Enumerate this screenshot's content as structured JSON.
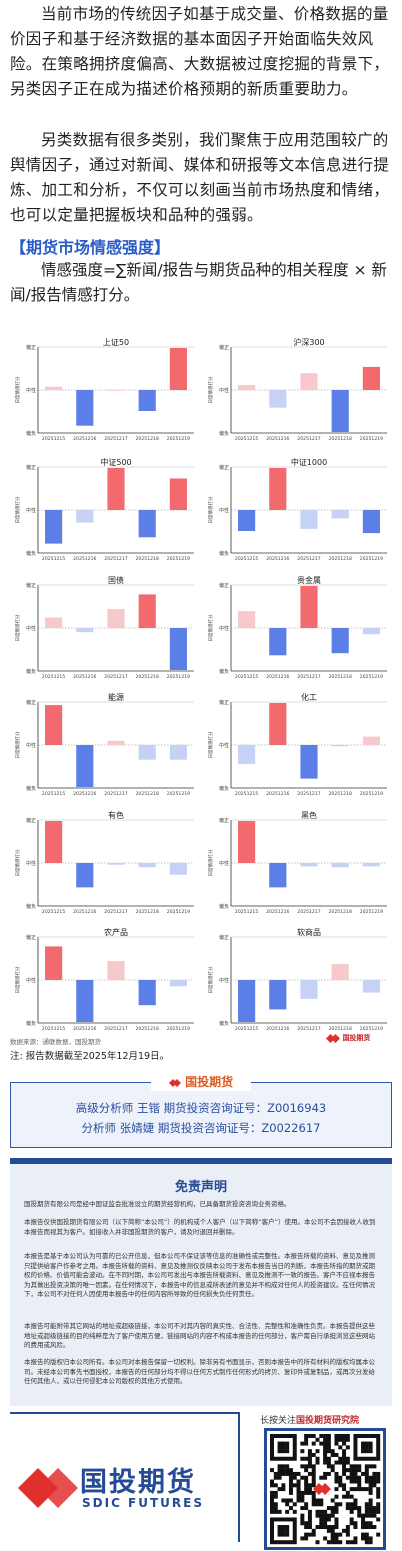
{
  "intro": {
    "p1": "当前市场的传统因子如基于成交量、价格数据的量价因子和基于经济数据的基本面因子开始面临失效风险。在策略拥挤度偏高、大数据被过度挖掘的背景下，另类因子正在成为描述价格预期的新质重要助力。",
    "p2": "另类数据有很多类别，我们聚焦于应用范围较广的舆情因子，通过对新闻、媒体和研报等文本信息进行提炼、加工和分析，不仅可以刻画当前市场热度和情绪，也可以定量把握板块和品种的强弱。",
    "section_title": "【期货市场情感强度】",
    "formula": "情感强度=∑新闻/报告与期货品种的相关程度 × 新闻/报告情感打分。"
  },
  "colors": {
    "pos_strong": "#f26a6e",
    "pos_weak": "#f7c9cd",
    "neg_strong": "#5b7fe6",
    "neg_weak": "#c6d2f5",
    "title_blue": "#2a5cc9",
    "brand_blue": "#254a96",
    "brand_red": "#e0302e"
  },
  "chart_common": {
    "y_top": "偏正",
    "y_mid": "中性",
    "y_bottom": "偏负",
    "y_title": "日度情感打分",
    "dates": [
      "20251215",
      "20251216",
      "20251217",
      "20251218",
      "20251219"
    ]
  },
  "chart_data": [
    {
      "type": "bar",
      "title": "上证50",
      "categories": [
        "20251215",
        "20251216",
        "20251217",
        "20251218",
        "20251219"
      ],
      "values": [
        0.08,
        -0.85,
        0.0,
        -0.5,
        1.0
      ],
      "ylim": [
        -1,
        1
      ]
    },
    {
      "type": "bar",
      "title": "沪深300",
      "categories": [
        "20251215",
        "20251216",
        "20251217",
        "20251218",
        "20251219"
      ],
      "values": [
        0.12,
        -0.42,
        0.4,
        -1.0,
        0.55
      ],
      "ylim": [
        -1,
        1
      ]
    },
    {
      "type": "bar",
      "title": "中证500",
      "categories": [
        "20251215",
        "20251216",
        "20251217",
        "20251218",
        "20251219"
      ],
      "values": [
        -0.8,
        -0.3,
        1.0,
        -0.65,
        0.75
      ],
      "ylim": [
        -1,
        1
      ]
    },
    {
      "type": "bar",
      "title": "中证1000",
      "categories": [
        "20251215",
        "20251216",
        "20251217",
        "20251218",
        "20251219"
      ],
      "values": [
        -0.5,
        1.0,
        -0.45,
        -0.2,
        -0.55
      ],
      "ylim": [
        -1,
        1
      ]
    },
    {
      "type": "bar",
      "title": "国债",
      "categories": [
        "20251215",
        "20251216",
        "20251217",
        "20251218",
        "20251219"
      ],
      "values": [
        0.25,
        -0.1,
        0.45,
        0.8,
        -1.0
      ],
      "ylim": [
        -1,
        1
      ]
    },
    {
      "type": "bar",
      "title": "贵金属",
      "categories": [
        "20251215",
        "20251216",
        "20251217",
        "20251218",
        "20251219"
      ],
      "values": [
        0.4,
        -0.65,
        1.0,
        -0.6,
        -0.15
      ],
      "ylim": [
        -1,
        1
      ]
    },
    {
      "type": "bar",
      "title": "能源",
      "categories": [
        "20251215",
        "20251216",
        "20251217",
        "20251218",
        "20251219"
      ],
      "values": [
        0.95,
        -1.0,
        0.1,
        -0.35,
        -0.35
      ],
      "ylim": [
        -1,
        1
      ]
    },
    {
      "type": "bar",
      "title": "化工",
      "categories": [
        "20251215",
        "20251216",
        "20251217",
        "20251218",
        "20251219"
      ],
      "values": [
        -0.45,
        1.0,
        -0.8,
        -0.03,
        0.2
      ],
      "ylim": [
        -1,
        1
      ]
    },
    {
      "type": "bar",
      "title": "有色",
      "categories": [
        "20251215",
        "20251216",
        "20251217",
        "20251218",
        "20251219"
      ],
      "values": [
        1.0,
        -0.58,
        -0.04,
        -0.1,
        -0.28
      ],
      "ylim": [
        -1,
        1
      ]
    },
    {
      "type": "bar",
      "title": "黑色",
      "categories": [
        "20251215",
        "20251216",
        "20251217",
        "20251218",
        "20251219"
      ],
      "values": [
        1.0,
        -0.58,
        -0.08,
        -0.1,
        -0.08
      ],
      "ylim": [
        -1,
        1
      ]
    },
    {
      "type": "bar",
      "title": "农产品",
      "categories": [
        "20251215",
        "20251216",
        "20251217",
        "20251218",
        "20251219"
      ],
      "values": [
        0.8,
        -1.0,
        0.45,
        -0.6,
        -0.15
      ],
      "ylim": [
        -1,
        1
      ]
    },
    {
      "type": "bar",
      "title": "软商品",
      "categories": [
        "20251215",
        "20251216",
        "20251217",
        "20251218",
        "20251219"
      ],
      "values": [
        -1.0,
        -0.7,
        -0.45,
        0.38,
        -0.3
      ],
      "ylim": [
        -1,
        1
      ]
    }
  ],
  "footer": {
    "source": "数据来源：通联数据，国投期货",
    "logo_text": "国投期货",
    "note": "注: 报告数据截至2025年12月19日。"
  },
  "analyst": {
    "heading": "国投期货",
    "line1": "高级分析师  王锴  期货投资咨询证号：Z0016943",
    "line2": "分析师  张婧婕  期货投资咨询证号：Z0022617"
  },
  "disclaimer": {
    "title": "免责声明",
    "p1": "国投期货有限公司是经中国证监会批准设立的期货经营机构，已具备期货投资咨询业务资格。",
    "p2": "本报告仅供国投期货有限公司（以下简称“本公司”）的机构或个人客户（以下简称“客户”）使用。本公司不会因接收人收到本报告而视其为客户。如接收人并非国投期货的客户，请及时退回并删除。",
    "p3": "本报告是基于本公司认为可靠的已公开信息，但本公司不保证该等信息的准确性或完整性。本报告所载的资料、意见及推测只提供给客户作参考之用。本报告所载的资料、意见及推测仅反映本公司于发布本报告当日的判断，本报告所指的期货或期权的价格、价值可能会波动。在不同时期，本公司可发出与本报告所载资料、意见及推测不一致的报告。客户不应视本报告为其做出投资决策的唯一因素。在任何情况下，本报告中的信息或所表述的意见并不构成对任何人的投资建议。在任何情况下，本公司不对任何人因使用本报告中的任何内容所导致的任何损失负任何责任。",
    "p4": "本报告可能附带其它网站的地址或超级链接，本公司不对其内容的真实性、合法性、完整性和准确性负责。本报告提供这些地址或超级链接的目的纯粹是为了客户使用方便，链接网站的内容不构成本报告的任何部分，客户需自行承担浏览这些网站的费用或风险。",
    "p5": "本报告的版权归本公司所有。本公司对本报告保留一切权利。除非另有书面显示，否则本报告中的所有材料的版权均属本公司。未经本公司事先书面授权，本报告的任何部分均不得以任何方式制作任何形式的拷贝、复印件或复制品，或再次分发给任何其他人，或以任何侵犯本公司版权的其他方式使用。"
  },
  "brand": {
    "cn": "国投期货",
    "en": "SDIC FUTURES",
    "follow_prefix": "长按关注",
    "follow_name": "国投期货研究院"
  }
}
